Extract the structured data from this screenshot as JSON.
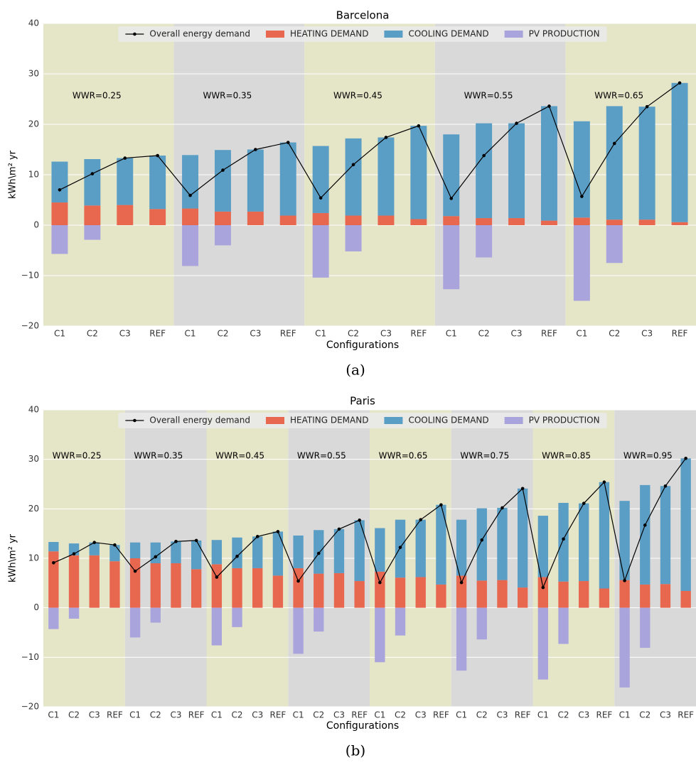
{
  "chart_data": [
    {
      "type": "bar",
      "title": "Barcelona",
      "caption": "(a)",
      "xlabel": "Configurations",
      "ylabel": "kWh\\m² yr",
      "ylim": [
        -20,
        40
      ],
      "yticks": [
        {
          "value": -20,
          "label": "−20"
        },
        {
          "value": -10,
          "label": "−10"
        },
        0,
        10,
        20,
        30,
        40
      ],
      "grid": true,
      "legend": "upper center",
      "groups": [
        "WWR=0.25",
        "WWR=0.35",
        "WWR=0.45",
        "WWR=0.55",
        "WWR=0.65"
      ],
      "group_colors": [
        "#e5e5c8",
        "#d9d9d9"
      ],
      "categories": [
        "C1",
        "C2",
        "C3",
        "REF",
        "C1",
        "C2",
        "C3",
        "REF",
        "C1",
        "C2",
        "C3",
        "REF",
        "C1",
        "C2",
        "C3",
        "REF",
        "C1",
        "C2",
        "C3",
        "REF"
      ],
      "series": [
        {
          "name": "Overall energy demand",
          "kind": "line",
          "color": "#000000",
          "values": [
            7.0,
            10.2,
            13.3,
            13.8,
            5.9,
            10.9,
            15.0,
            16.4,
            5.4,
            12.0,
            17.4,
            19.7,
            5.3,
            13.8,
            20.2,
            23.6,
            5.7,
            16.2,
            23.5,
            28.2
          ]
        },
        {
          "name": "HEATING DEMAND",
          "kind": "bar",
          "color": "#e8674f",
          "values": [
            4.5,
            3.9,
            4.0,
            3.2,
            3.3,
            2.7,
            2.7,
            1.9,
            2.4,
            1.9,
            1.9,
            1.2,
            1.8,
            1.4,
            1.4,
            0.9,
            1.5,
            1.1,
            1.1,
            0.6
          ]
        },
        {
          "name": "COOLING DEMAND",
          "kind": "bar",
          "color": "#5a9dc5",
          "values": [
            8.1,
            9.2,
            9.3,
            10.6,
            10.6,
            12.2,
            12.3,
            14.5,
            13.3,
            15.3,
            15.5,
            18.5,
            16.2,
            18.8,
            18.8,
            22.7,
            19.1,
            22.5,
            22.4,
            27.6
          ]
        },
        {
          "name": "PV PRODUCTION",
          "kind": "bar",
          "color": "#aaa4dc",
          "values": [
            -5.7,
            -2.9,
            0,
            0,
            -8.1,
            -4.0,
            0,
            0,
            -10.4,
            -5.2,
            0,
            0,
            -12.7,
            -6.4,
            0,
            0,
            -15.0,
            -7.5,
            0,
            0
          ]
        }
      ]
    },
    {
      "type": "bar",
      "title": "Paris",
      "caption": "(b)",
      "xlabel": "Configurations",
      "ylabel": "kWh\\m² yr",
      "ylim": [
        -20,
        40
      ],
      "yticks": [
        {
          "value": -20,
          "label": "−20"
        },
        {
          "value": -10,
          "label": "−10"
        },
        0,
        10,
        20,
        30,
        40
      ],
      "grid": true,
      "legend": "upper center",
      "groups": [
        "WWR=0.25",
        "WWR=0.35",
        "WWR=0.45",
        "WWR=0.55",
        "WWR=0.65",
        "WWR=0.75",
        "WWR=0.85",
        "WWR=0.95"
      ],
      "group_colors": [
        "#e5e5c8",
        "#d9d9d9"
      ],
      "categories": [
        "C1",
        "C2",
        "C3",
        "REF",
        "C1",
        "C2",
        "C3",
        "REF",
        "C1",
        "C2",
        "C3",
        "REF",
        "C1",
        "C2",
        "C3",
        "REF",
        "C1",
        "C2",
        "C3",
        "REF",
        "C1",
        "C2",
        "C3",
        "REF",
        "C1",
        "C2",
        "C3",
        "REF",
        "C1",
        "C2",
        "C3",
        "REF"
      ],
      "series": [
        {
          "name": "Overall energy demand",
          "kind": "line",
          "color": "#000000",
          "values": [
            9.1,
            10.9,
            13.2,
            12.7,
            7.4,
            10.3,
            13.4,
            13.6,
            6.2,
            10.4,
            14.4,
            15.4,
            5.4,
            11.0,
            15.9,
            17.7,
            5.1,
            12.2,
            17.8,
            20.8,
            5.1,
            13.7,
            20.2,
            24.1,
            4.1,
            13.9,
            21.1,
            25.4,
            5.5,
            16.7,
            24.6,
            30.2
          ]
        },
        {
          "name": "HEATING DEMAND",
          "kind": "bar",
          "color": "#e8674f",
          "values": [
            11.4,
            10.6,
            10.6,
            9.4,
            10.0,
            9.0,
            9.0,
            7.8,
            8.8,
            8.0,
            8.0,
            6.5,
            8.0,
            6.9,
            7.0,
            5.4,
            7.3,
            6.1,
            6.2,
            4.7,
            6.5,
            5.5,
            5.6,
            4.1,
            6.2,
            5.3,
            5.4,
            3.9,
            5.6,
            4.7,
            4.8,
            3.4
          ]
        },
        {
          "name": "COOLING DEMAND",
          "kind": "bar",
          "color": "#5a9dc5",
          "values": [
            1.9,
            2.4,
            2.6,
            3.3,
            3.2,
            4.2,
            4.4,
            5.8,
            4.9,
            6.2,
            6.4,
            8.9,
            6.6,
            8.8,
            8.9,
            12.3,
            8.8,
            11.7,
            11.6,
            16.1,
            11.3,
            14.6,
            14.6,
            20.0,
            12.4,
            15.9,
            15.7,
            21.5,
            16.0,
            20.1,
            19.8,
            26.8
          ]
        },
        {
          "name": "PV PRODUCTION",
          "kind": "bar",
          "color": "#aaa4dc",
          "values": [
            -4.3,
            -2.2,
            0,
            0,
            -6.0,
            -3.0,
            0,
            0,
            -7.6,
            -3.9,
            0,
            0,
            -9.3,
            -4.8,
            0,
            0,
            -11.0,
            -5.6,
            0,
            0,
            -12.7,
            -6.4,
            0,
            0,
            -14.5,
            -7.3,
            0,
            0,
            -16.1,
            -8.1,
            0,
            0
          ]
        }
      ]
    }
  ]
}
